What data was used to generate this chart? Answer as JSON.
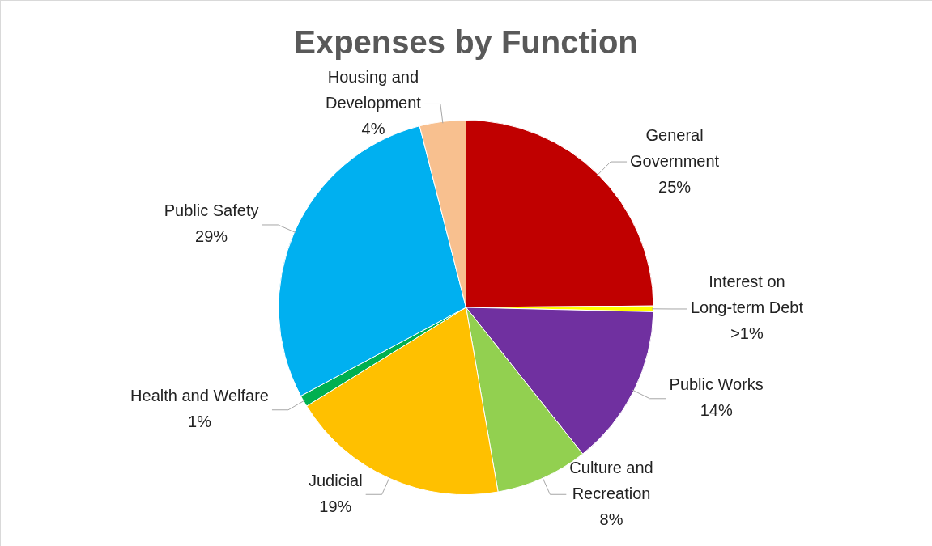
{
  "chart_data": {
    "type": "pie",
    "title": "Expenses by Function",
    "categories": [
      "General Government",
      "Interest on Long-term Debt",
      "Public Works",
      "Culture and Recreation",
      "Judicial",
      "Health and Welfare",
      "Public Safety",
      "Housing and Development"
    ],
    "values": [
      25,
      0.5,
      14,
      8,
      19,
      1,
      29,
      4
    ],
    "value_labels": [
      "25%",
      ">1%",
      "14%",
      "8%",
      "19%",
      "1%",
      "29%",
      "4%"
    ],
    "colors": [
      "#c00000",
      "#ffff00",
      "#7030a0",
      "#92d050",
      "#ffc000",
      "#00b050",
      "#00b0f0",
      "#f8c08f"
    ]
  }
}
